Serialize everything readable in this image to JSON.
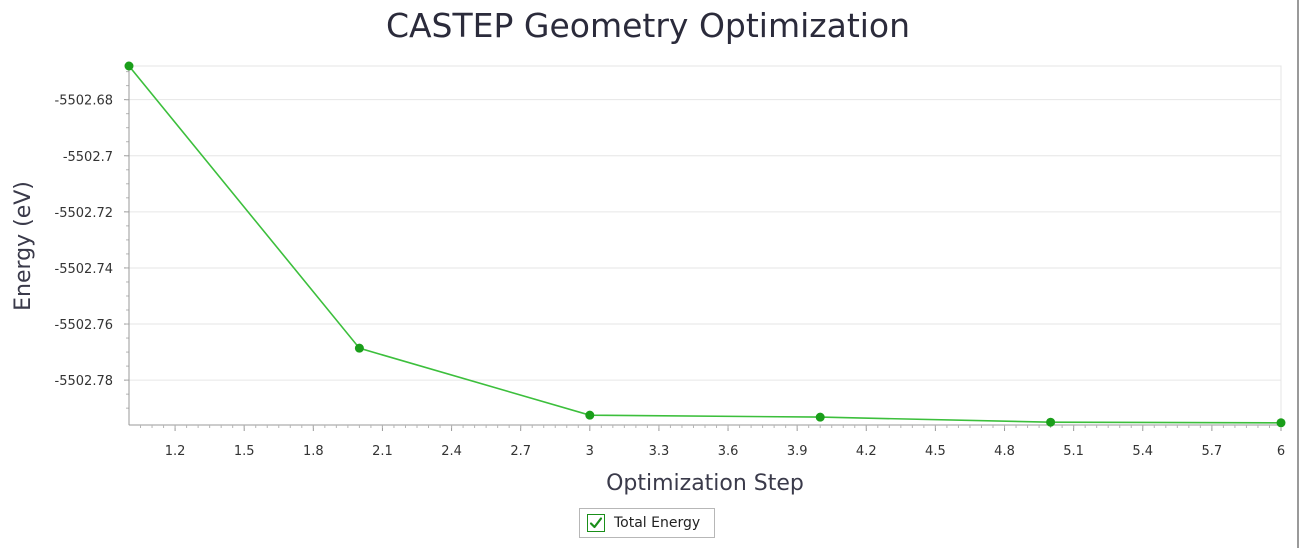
{
  "chart_data": {
    "type": "line",
    "title": "CASTEP Geometry Optimization",
    "xlabel": "Optimization Step",
    "ylabel": "Energy (eV)",
    "xlim": [
      1,
      6
    ],
    "ylim": [
      -5502.796,
      -5502.668
    ],
    "x_ticks": [
      "1.2",
      "1.5",
      "1.8",
      "2.1",
      "2.4",
      "2.7",
      "3",
      "3.3",
      "3.6",
      "3.9",
      "4.2",
      "4.5",
      "4.8",
      "5.1",
      "5.4",
      "5.7",
      "6"
    ],
    "y_ticks": [
      "-5502.68",
      "-5502.7",
      "-5502.72",
      "-5502.74",
      "-5502.76",
      "-5502.78"
    ],
    "grid": true,
    "legend_position": "bottom-center",
    "series": [
      {
        "name": "Total Energy",
        "color": "#1a9e1a",
        "x": [
          1,
          2,
          3,
          4,
          5,
          6
        ],
        "y": [
          -5502.668,
          -5502.7686,
          -5502.7925,
          -5502.7932,
          -5502.795,
          -5502.7952
        ]
      }
    ]
  },
  "legend": {
    "items": [
      {
        "label": "Total Energy",
        "checked": true,
        "icon": "checkmark-icon"
      }
    ]
  }
}
